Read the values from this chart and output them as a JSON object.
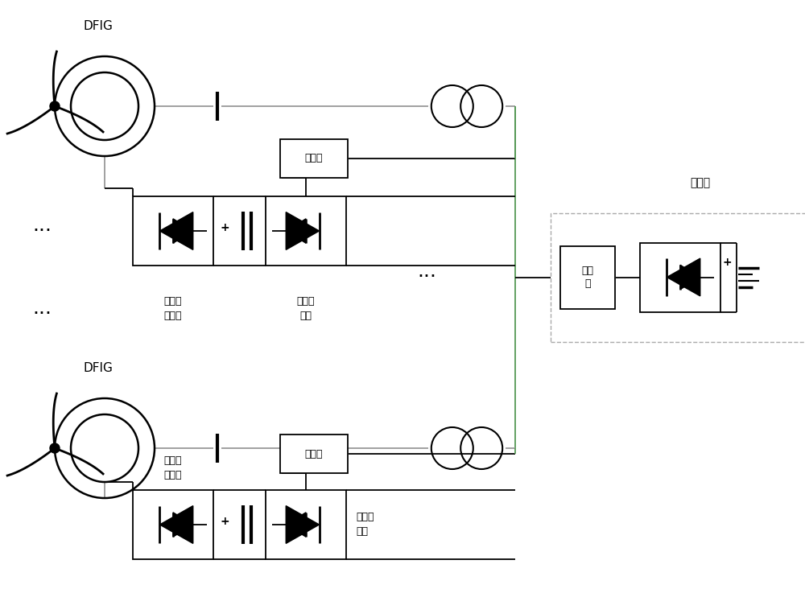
{
  "bg_color": "#ffffff",
  "lc": "#000000",
  "gc": "#aaaaaa",
  "fig_w": 10.0,
  "fig_h": 7.32,
  "dpi": 100,
  "label_dfig": "DFIG",
  "label_rotor": "转子侧\n变流器",
  "label_grid": "网侧变\n流器",
  "label_filter": "滤波器",
  "label_filter2": "滤波\n器",
  "label_sending": "送端站",
  "label_dots": "···"
}
